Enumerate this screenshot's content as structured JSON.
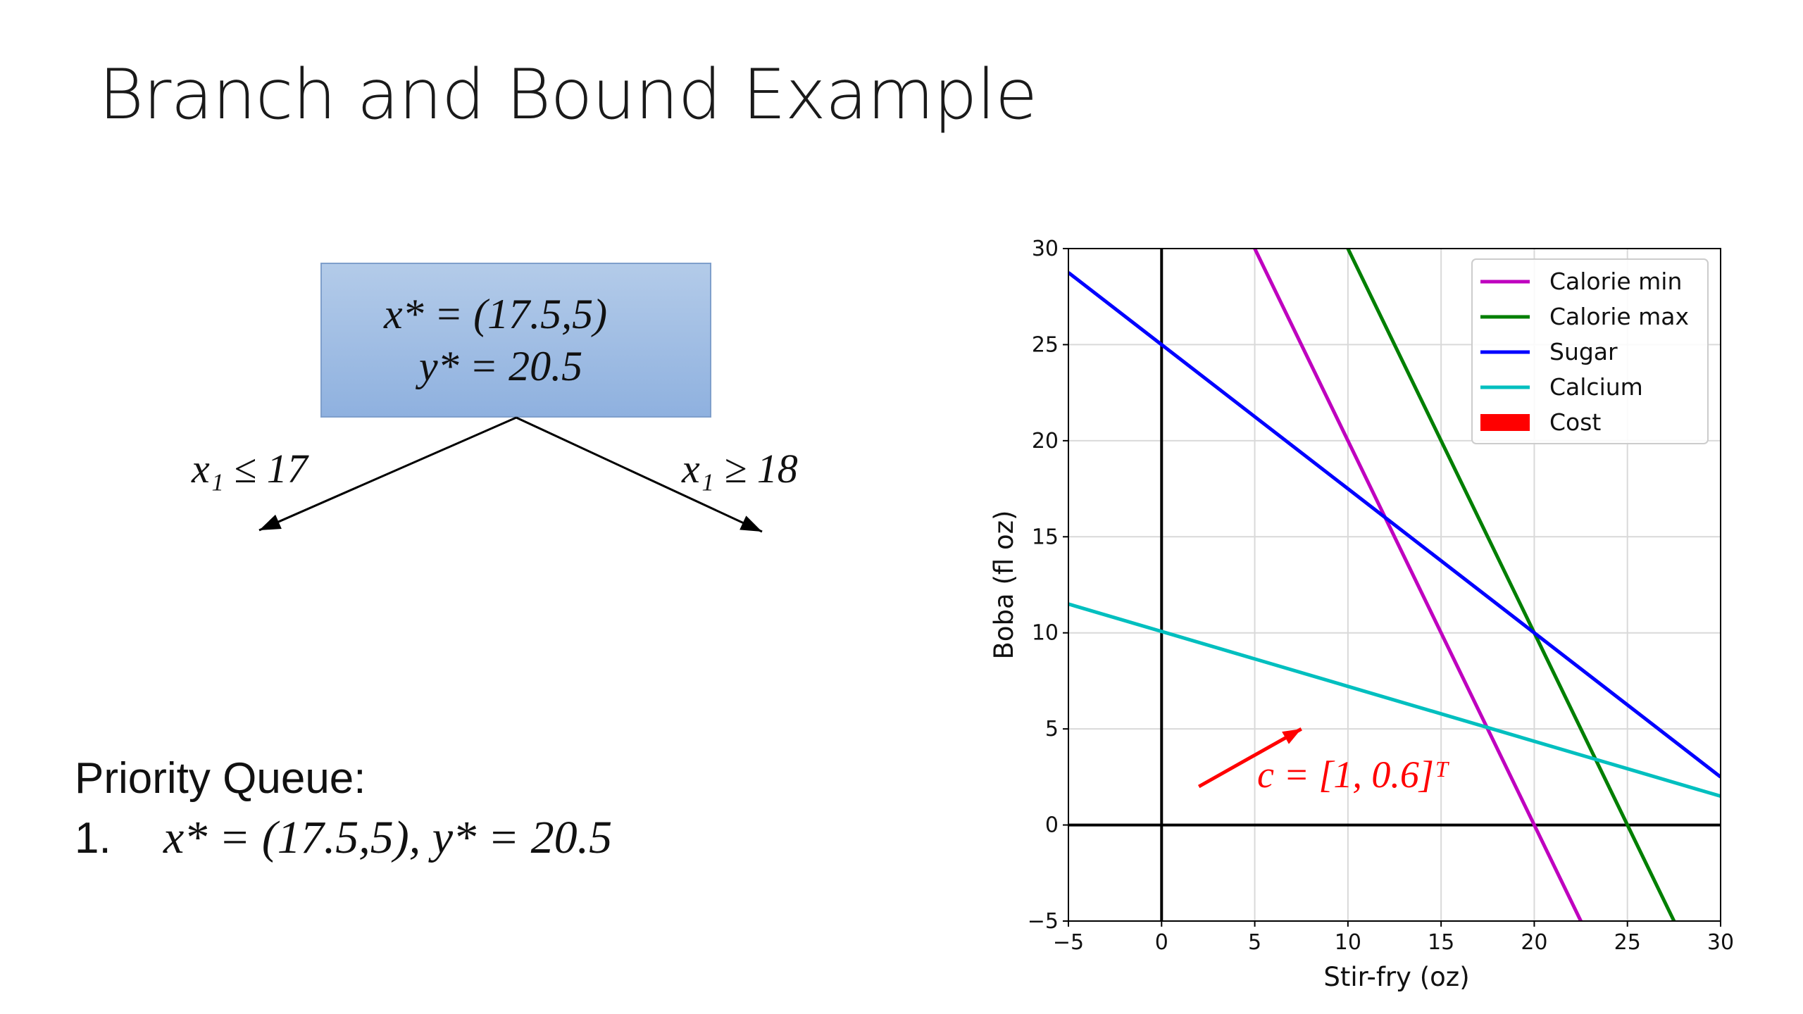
{
  "slide": {
    "title": "Branch and Bound Example"
  },
  "root_node": {
    "x_star": "x* = (17.5,5)",
    "y_star": "y* = 20.5"
  },
  "branches": {
    "left": "x₁ ≤ 17",
    "right": "x₁ ≥ 18"
  },
  "priority_queue": {
    "heading": "Priority Queue:",
    "items": [
      {
        "number": "1.",
        "text": "x* = (17.5,5),  y* = 20.5"
      }
    ]
  },
  "chart_data": {
    "type": "line",
    "xlabel": "Stir-fry (oz)",
    "ylabel": "Boba (fl oz)",
    "xlim": [
      -5,
      30
    ],
    "ylim": [
      -5,
      30
    ],
    "xticks": [
      -5,
      0,
      5,
      10,
      15,
      20,
      25,
      30
    ],
    "yticks": [
      -5,
      0,
      5,
      10,
      15,
      20,
      25,
      30
    ],
    "xtick_labels": [
      "−5",
      "0",
      "5",
      "10",
      "15",
      "20",
      "25",
      "30"
    ],
    "ytick_labels": [
      "−5",
      "0",
      "5",
      "10",
      "15",
      "20",
      "25",
      "30"
    ],
    "grid": true,
    "legend_position": "top-right",
    "series": [
      {
        "name": "Calorie min",
        "color": "#bf00bf",
        "x": [
          5,
          22.5
        ],
        "y": [
          30,
          -5
        ]
      },
      {
        "name": "Calorie max",
        "color": "#007f00",
        "x": [
          10,
          27.5
        ],
        "y": [
          30,
          -5
        ]
      },
      {
        "name": "Sugar",
        "color": "#0000ff",
        "x": [
          -5,
          30
        ],
        "y": [
          28.75,
          2.5
        ]
      },
      {
        "name": "Calcium",
        "color": "#00bfbf",
        "x": [
          -5,
          30
        ],
        "y": [
          11.5,
          1.5
        ]
      },
      {
        "name": "Cost",
        "color": "#ff0000",
        "legend_style": "patch"
      }
    ],
    "axes_lines": {
      "x0": 0,
      "y0": 0,
      "color": "#000000"
    },
    "annotation": {
      "label": "c = [1, 0.6]ᵀ",
      "color": "#ff0000",
      "arrow_from": [
        2,
        2
      ],
      "arrow_to": [
        7.5,
        5
      ]
    }
  }
}
